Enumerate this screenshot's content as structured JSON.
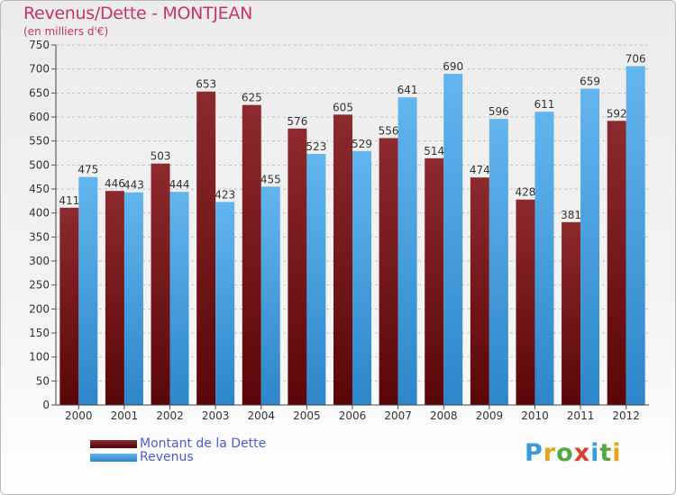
{
  "chart_data": {
    "type": "bar",
    "title": "Revenus/Dette - MONTJEAN",
    "subtitle": "(en milliers d'€)",
    "xlabel": "",
    "ylabel": "",
    "ylim": [
      0,
      750
    ],
    "ytick_step": 50,
    "grid": true,
    "categories": [
      "2000",
      "2001",
      "2002",
      "2003",
      "2004",
      "2005",
      "2006",
      "2007",
      "2008",
      "2009",
      "2010",
      "2011",
      "2012"
    ],
    "series": [
      {
        "name": "Montant de la Dette",
        "color": "#7a1a1e",
        "values": [
          411,
          446,
          503,
          653,
          625,
          576,
          605,
          556,
          514,
          474,
          428,
          381,
          592
        ]
      },
      {
        "name": "Revenus",
        "color": "#4ea7e6",
        "values": [
          475,
          443,
          444,
          423,
          455,
          523,
          529,
          641,
          690,
          596,
          611,
          659,
          706
        ]
      }
    ],
    "legend_position": "bottom-left"
  },
  "logo": {
    "text": "Proxiti",
    "letters": [
      "P",
      "r",
      "o",
      "x",
      "i",
      "t",
      "i"
    ],
    "colors": [
      "#3a9ad9",
      "#e9a31b",
      "#56a845",
      "#d8412f",
      "#3a9ad9",
      "#56a845",
      "#e9a31b"
    ]
  }
}
